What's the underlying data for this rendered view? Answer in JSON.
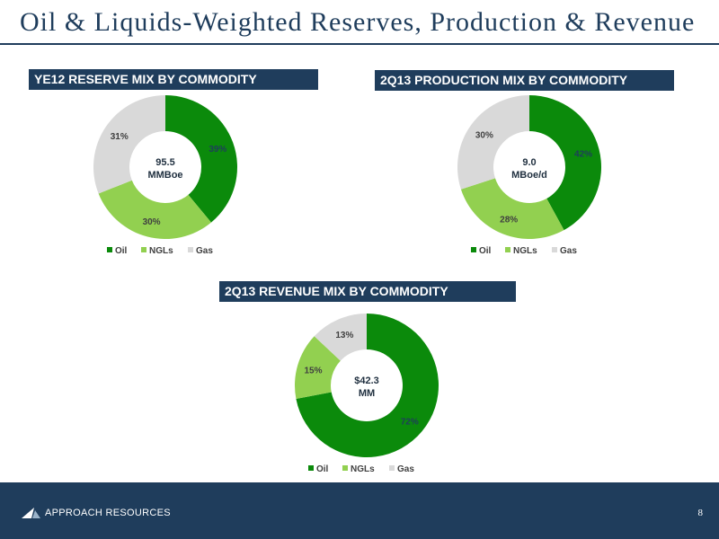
{
  "title": "Oil & Liquids-Weighted Reserves, Production & Revenue",
  "colors": {
    "oil": "#0b8a0b",
    "ngls": "#92d050",
    "gas": "#d9d9d9",
    "navy": "#1f3d5c"
  },
  "chart_data": [
    {
      "type": "pie",
      "title": "YE12 RESERVE MIX BY COMMODITY",
      "center_label": [
        "95.5",
        "MMBoe"
      ],
      "categories": [
        "Oil",
        "NGLs",
        "Gas"
      ],
      "values": [
        39,
        30,
        31
      ],
      "data_labels": [
        "39%",
        "30%",
        "31%"
      ],
      "legend": "bottom"
    },
    {
      "type": "pie",
      "title": "2Q13 PRODUCTION MIX BY COMMODITY",
      "center_label": [
        "9.0",
        "MBoe/d"
      ],
      "categories": [
        "Oil",
        "NGLs",
        "Gas"
      ],
      "values": [
        42,
        28,
        30
      ],
      "data_labels": [
        "42%",
        "28%",
        "30%"
      ],
      "legend": "bottom"
    },
    {
      "type": "pie",
      "title": "2Q13 REVENUE MIX BY COMMODITY",
      "center_label": [
        "$42.3",
        "MM"
      ],
      "categories": [
        "Oil",
        "NGLs",
        "Gas"
      ],
      "values": [
        72,
        15,
        13
      ],
      "data_labels": [
        "72%",
        "15%",
        "13%"
      ],
      "legend": "bottom"
    }
  ],
  "footer": {
    "company": "APPROACH RESOURCES",
    "page": "8"
  }
}
